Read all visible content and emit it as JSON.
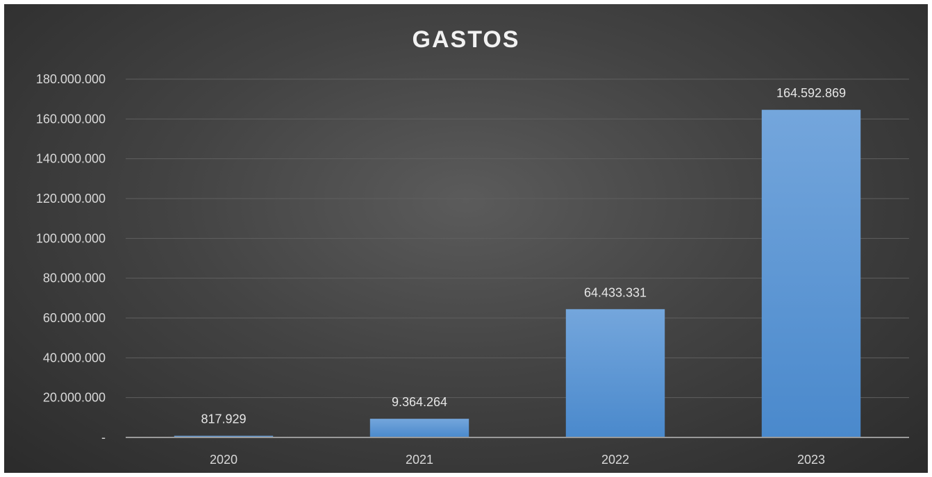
{
  "chart_data": {
    "type": "bar",
    "title": "GASTOS",
    "xlabel": "",
    "ylabel": "",
    "categories": [
      "2020",
      "2021",
      "2022",
      "2023"
    ],
    "values": [
      817929,
      9364264,
      64433331,
      164592869
    ],
    "value_labels": [
      "817.929",
      "9.364.264",
      "64.433.331",
      "164.592.869"
    ],
    "ylim": [
      0,
      180000000
    ],
    "y_ticks": [
      0,
      20000000,
      40000000,
      60000000,
      80000000,
      100000000,
      120000000,
      140000000,
      160000000,
      180000000
    ],
    "y_tick_labels": [
      "-",
      "20.000.000",
      "40.000.000",
      "60.000.000",
      "80.000.000",
      "100.000.000",
      "120.000.000",
      "140.000.000",
      "160.000.000",
      "180.000.000"
    ],
    "grid": true,
    "legend": "none",
    "colors": {
      "bar_top": "#74a6dc",
      "bar_bottom": "#4a89cc",
      "grid": "#5f5f5f",
      "axis": "#9a9a9a"
    }
  }
}
